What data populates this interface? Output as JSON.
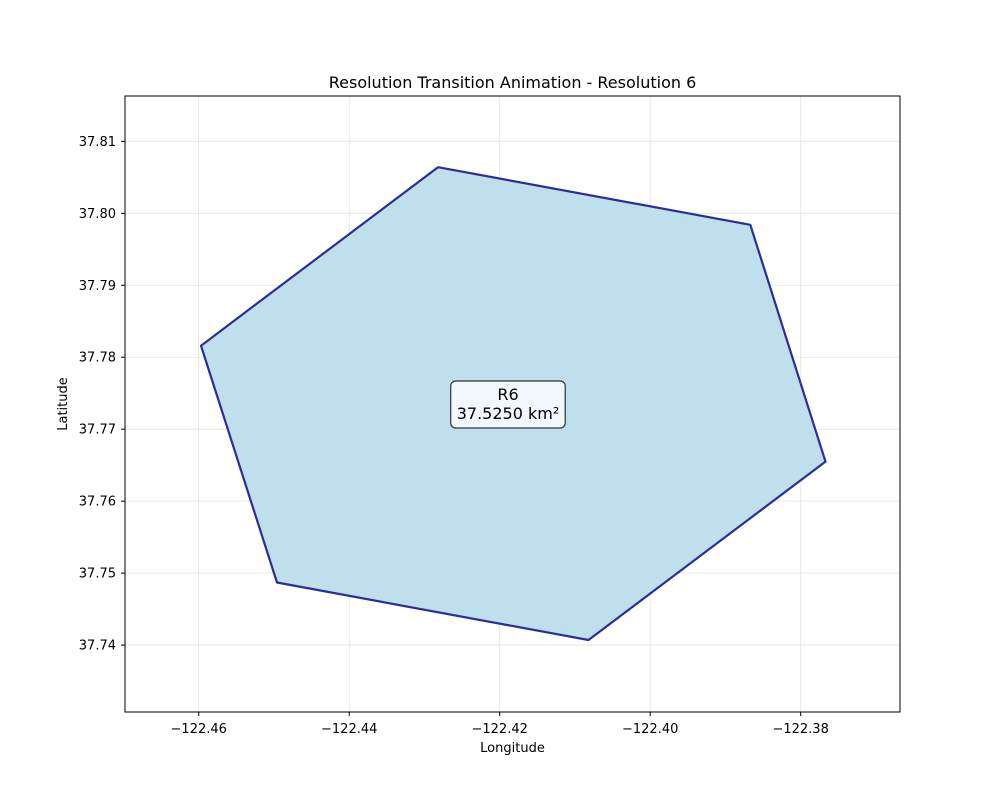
{
  "chart_data": {
    "type": "polygon",
    "title": "Resolution Transition Animation - Resolution 6",
    "xlabel": "Longitude",
    "ylabel": "Latitude",
    "xlim": [
      -122.4698,
      -122.3668
    ],
    "ylim": [
      37.7307,
      37.8163
    ],
    "xticks": [
      -122.46,
      -122.44,
      -122.42,
      -122.4,
      -122.38
    ],
    "xtick_labels": [
      "−122.46",
      "−122.44",
      "−122.42",
      "−122.40",
      "−122.38"
    ],
    "yticks": [
      37.74,
      37.75,
      37.76,
      37.77,
      37.78,
      37.79,
      37.8,
      37.81
    ],
    "ytick_labels": [
      "37.74",
      "37.75",
      "37.76",
      "37.77",
      "37.78",
      "37.79",
      "37.80",
      "37.81"
    ],
    "grid": true,
    "polygon": {
      "vertices": [
        {
          "lon": -122.4282,
          "lat": 37.8064
        },
        {
          "lon": -122.3867,
          "lat": 37.7984
        },
        {
          "lon": -122.3767,
          "lat": 37.7655
        },
        {
          "lon": -122.4082,
          "lat": 37.7407
        },
        {
          "lon": -122.4496,
          "lat": 37.7487
        },
        {
          "lon": -122.4597,
          "lat": 37.7816
        }
      ],
      "fill_color": "#bedfeb",
      "edge_color": "#2b2e96"
    },
    "annotation": {
      "lines": [
        "R6",
        "37.5250 km²"
      ],
      "lon": -122.4189,
      "lat": 37.7735,
      "box_color": "#f0f8fb",
      "border_color": "#333333"
    }
  }
}
